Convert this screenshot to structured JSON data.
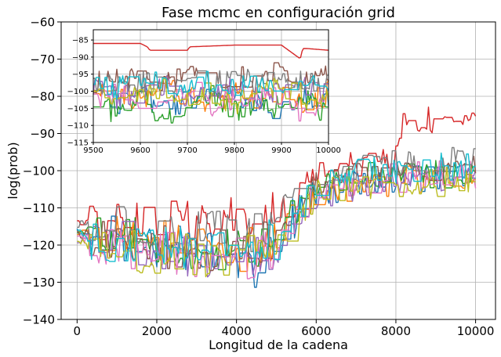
{
  "chart_data": [
    {
      "type": "line",
      "title": "Fase mcmc en configuración grid",
      "xlabel": "Longitud de la cadena",
      "ylabel": "log(prob)",
      "xlim": [
        -400,
        10500
      ],
      "ylim": [
        -140,
        -60
      ],
      "xticks": [
        0,
        2000,
        4000,
        6000,
        8000,
        10000
      ],
      "yticks": [
        -140,
        -130,
        -120,
        -110,
        -100,
        -90,
        -80,
        -70,
        -60
      ],
      "grid": true,
      "legend": "none",
      "colors": [
        "#1f77b4",
        "#ff7f0e",
        "#2ca02c",
        "#d62728",
        "#9467bd",
        "#8c564b",
        "#e377c2",
        "#7f7f7f",
        "#bcbd22",
        "#17becf"
      ],
      "series": [
        {
          "color": "#d62728",
          "x": [
            0,
            1000,
            2000,
            3000,
            4000,
            5000,
            5500,
            6000,
            7000,
            7800,
            8000,
            8200,
            8500,
            9000,
            9500,
            9900,
            10000
          ],
          "values": [
            -114.5,
            -114,
            -114,
            -113.5,
            -113,
            -110,
            -107,
            -100,
            -98,
            -97.5,
            -90,
            -88,
            -87,
            -86,
            -86.5,
            -87,
            -88
          ]
        },
        {
          "color": "#1f77b4",
          "x": [
            0,
            1000,
            2000,
            3000,
            4000,
            4600,
            5000,
            6000,
            7000,
            8000,
            9000,
            10000
          ],
          "values": [
            -116,
            -118,
            -120,
            -121,
            -124,
            -128,
            -118,
            -106,
            -104,
            -103,
            -102,
            -100
          ]
        },
        {
          "color": "#ff7f0e",
          "x": [
            0,
            1000,
            2000,
            3000,
            4000,
            5000,
            6000,
            7000,
            8000,
            9000,
            10000
          ],
          "values": [
            -117,
            -118,
            -119,
            -121,
            -122,
            -119,
            -106,
            -104,
            -103,
            -102,
            -101
          ]
        },
        {
          "color": "#2ca02c",
          "x": [
            0,
            1000,
            2000,
            3000,
            4000,
            5000,
            6000,
            7000,
            8000,
            9000,
            10000
          ],
          "values": [
            -116,
            -117,
            -120,
            -121,
            -122,
            -118,
            -104,
            -102,
            -101,
            -101,
            -100
          ]
        },
        {
          "color": "#9467bd",
          "x": [
            0,
            1000,
            2000,
            3000,
            4000,
            5000,
            6000,
            7000,
            8000,
            9000,
            10000
          ],
          "values": [
            -118,
            -119,
            -121,
            -123,
            -124,
            -120,
            -107,
            -104,
            -103,
            -102,
            -102
          ]
        },
        {
          "color": "#8c564b",
          "x": [
            0,
            1000,
            2000,
            3000,
            4000,
            5000,
            6000,
            7000,
            8000,
            9000,
            10000
          ],
          "values": [
            -117,
            -118,
            -120,
            -122,
            -121,
            -118,
            -104,
            -101,
            -101,
            -100,
            -99
          ]
        },
        {
          "color": "#e377c2",
          "x": [
            0,
            1000,
            2000,
            3000,
            4000,
            5000,
            6000,
            7000,
            8000,
            9000,
            10000
          ],
          "values": [
            -118,
            -120,
            -121,
            -123,
            -124,
            -121,
            -106,
            -103,
            -102,
            -101,
            -101
          ]
        },
        {
          "color": "#7f7f7f",
          "x": [
            0,
            1000,
            2000,
            3000,
            4000,
            5000,
            6000,
            7000,
            8000,
            9000,
            10000
          ],
          "values": [
            -115,
            -115,
            -116,
            -116,
            -117,
            -115,
            -102,
            -99,
            -98.5,
            -98,
            -96
          ]
        },
        {
          "color": "#bcbd22",
          "x": [
            0,
            1000,
            2000,
            3000,
            4000,
            5000,
            6000,
            7000,
            8000,
            9000,
            10000
          ],
          "values": [
            -119,
            -121,
            -122,
            -123,
            -122,
            -119,
            -106,
            -104,
            -103,
            -103,
            -102
          ]
        },
        {
          "color": "#17becf",
          "x": [
            0,
            1000,
            2000,
            3000,
            4000,
            5000,
            6000,
            7000,
            8000,
            9000,
            10000
          ],
          "values": [
            -116,
            -122,
            -121,
            -120,
            -121,
            -118,
            -103,
            -100,
            -100,
            -99,
            -98
          ]
        }
      ]
    },
    {
      "type": "line",
      "title": "",
      "xlabel": "",
      "ylabel": "",
      "xlim": [
        9500,
        10000
      ],
      "ylim": [
        -115,
        -82
      ],
      "xticks": [
        9500,
        9600,
        9700,
        9800,
        9900,
        10000
      ],
      "yticks": [
        -115,
        -110,
        -105,
        -100,
        -95,
        -90,
        -85
      ],
      "grid": true,
      "legend": "none",
      "series": [
        {
          "color": "#d62728",
          "x": [
            9500,
            9600,
            9615,
            9620,
            9700,
            9705,
            9800,
            9900,
            9940,
            9945,
            9955,
            10000
          ],
          "values": [
            -86,
            -86,
            -87,
            -88,
            -88,
            -87,
            -86.5,
            -86.5,
            -90.5,
            -87.5,
            -87.5,
            -88
          ]
        },
        {
          "color": "#1f77b4",
          "x": [
            9500,
            9550,
            9600,
            9650,
            9700,
            9750,
            9800,
            9850,
            9900,
            9950,
            10000
          ],
          "values": [
            -102,
            -104,
            -101,
            -105,
            -103,
            -100,
            -104,
            -102,
            -106,
            -101,
            -103
          ]
        },
        {
          "color": "#ff7f0e",
          "x": [
            9500,
            9550,
            9600,
            9650,
            9700,
            9750,
            9800,
            9850,
            9900,
            9950,
            10000
          ],
          "values": [
            -101,
            -100,
            -103,
            -99,
            -102,
            -104,
            -100,
            -103,
            -101,
            -105,
            -100
          ]
        },
        {
          "color": "#2ca02c",
          "x": [
            9500,
            9550,
            9600,
            9650,
            9700,
            9750,
            9800,
            9850,
            9900,
            9950,
            10000
          ],
          "values": [
            -104,
            -106,
            -102,
            -109,
            -104,
            -101,
            -106,
            -103,
            -105,
            -102,
            -107
          ]
        },
        {
          "color": "#9467bd",
          "x": [
            9500,
            9550,
            9600,
            9650,
            9700,
            9750,
            9800,
            9850,
            9900,
            9950,
            10000
          ],
          "values": [
            -99,
            -102,
            -100,
            -98,
            -103,
            -100,
            -99,
            -102,
            -100,
            -98,
            -101
          ]
        },
        {
          "color": "#8c564b",
          "x": [
            9500,
            9550,
            9600,
            9650,
            9700,
            9750,
            9800,
            9850,
            9900,
            9950,
            10000
          ],
          "values": [
            -97,
            -97,
            -96.5,
            -96.5,
            -96,
            -96,
            -95.5,
            -95.5,
            -95,
            -95,
            -95
          ]
        },
        {
          "color": "#e377c2",
          "x": [
            9500,
            9550,
            9600,
            9650,
            9700,
            9750,
            9800,
            9850,
            9900,
            9950,
            10000
          ],
          "values": [
            -103,
            -100,
            -105,
            -101,
            -99,
            -104,
            -102,
            -100,
            -103,
            -106,
            -101
          ]
        },
        {
          "color": "#7f7f7f",
          "x": [
            9500,
            9550,
            9600,
            9650,
            9700,
            9750,
            9800,
            9850,
            9900,
            9950,
            10000
          ],
          "values": [
            -97,
            -98,
            -97,
            -99,
            -97,
            -98,
            -96,
            -97,
            -96,
            -97,
            -96
          ]
        },
        {
          "color": "#bcbd22",
          "x": [
            9500,
            9550,
            9600,
            9650,
            9700,
            9750,
            9800,
            9850,
            9900,
            9950,
            10000
          ],
          "values": [
            -100,
            -103,
            -101,
            -99,
            -102,
            -100,
            -104,
            -101,
            -99,
            -103,
            -100
          ]
        },
        {
          "color": "#17becf",
          "x": [
            9500,
            9550,
            9600,
            9650,
            9700,
            9750,
            9800,
            9850,
            9900,
            9950,
            10000
          ],
          "values": [
            -98,
            -99,
            -97,
            -98,
            -99,
            -97,
            -98,
            -97,
            -99,
            -97,
            -98
          ]
        }
      ]
    }
  ]
}
